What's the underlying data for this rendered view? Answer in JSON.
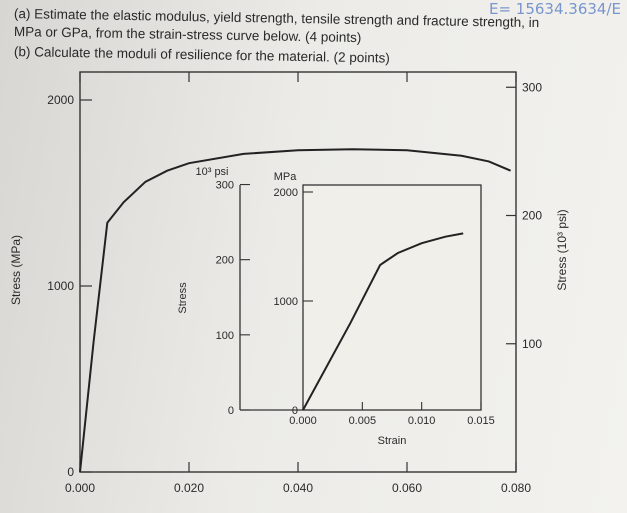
{
  "question": {
    "line1": "(a) Estimate the elastic modulus, yield strength, tensile strength and fracture strength, in",
    "line2": "MPa or GPa, from the strain-stress curve below. (4 points)",
    "line3": "(b) Calculate the moduli of resilience for the material. (2 points)"
  },
  "handwriting": "E= 15634.3634/E",
  "chart_data": [
    {
      "type": "line",
      "title": "",
      "xlabel": "",
      "ylabel": "Stress (MPa)",
      "ylabel_right": "Stress (10³ psi)",
      "xlim": [
        0,
        0.08
      ],
      "ylim": [
        0,
        2000
      ],
      "x_ticks": [
        "0.000",
        "0.020",
        "0.040",
        "0.060",
        "0.080"
      ],
      "y_ticks_left": [
        "0",
        "1000",
        "2000"
      ],
      "y_ticks_right": [
        "100",
        "200",
        "300"
      ],
      "series": [
        {
          "x": [
            0,
            0.0025,
            0.005,
            0.008,
            0.012,
            0.016,
            0.02,
            0.03,
            0.04,
            0.05,
            0.06,
            0.07,
            0.075,
            0.079
          ],
          "y": [
            0,
            700,
            1340,
            1450,
            1560,
            1620,
            1660,
            1710,
            1730,
            1735,
            1730,
            1700,
            1670,
            1620
          ]
        }
      ]
    },
    {
      "type": "line",
      "title": "",
      "xlabel": "Strain",
      "ylabel": "Stress",
      "unit_left": "10³ psi",
      "unit_right": "MPa",
      "xlim": [
        0,
        0.015
      ],
      "ylim": [
        0,
        2000
      ],
      "x_ticks": [
        "0.000",
        "0.005",
        "0.010",
        "0.015"
      ],
      "y_ticks_left": [
        "0",
        "100",
        "200",
        "300"
      ],
      "y_ticks_right": [
        "0",
        "1000",
        "2000"
      ],
      "series": [
        {
          "x": [
            0,
            0.004,
            0.0065,
            0.008,
            0.01,
            0.012,
            0.0135
          ],
          "y": [
            0,
            800,
            1330,
            1440,
            1530,
            1590,
            1620
          ]
        }
      ]
    }
  ]
}
